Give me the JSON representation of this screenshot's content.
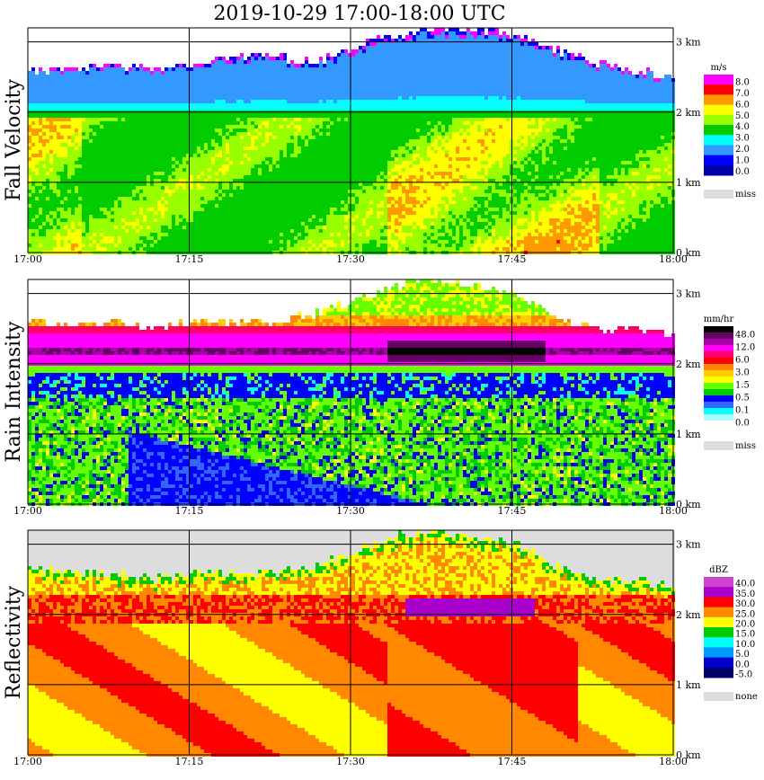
{
  "title": "2019-10-29   17:00-18:00 UTC",
  "chart_data": [
    {
      "type": "heatmap",
      "ylabel": "Fall Velocity",
      "x_ticks": [
        "17:00",
        "17:15",
        "17:30",
        "17:45",
        "18:00"
      ],
      "y_ticks": [
        "0 km",
        "1 km",
        "2 km",
        "3 km"
      ],
      "xlim": [
        "17:00",
        "18:00"
      ],
      "ylim": [
        0,
        3.2
      ],
      "grid": true,
      "legend_unit": "m/s",
      "legend_labels": [
        "8.0",
        "7.0",
        "6.0",
        "5.0",
        "4.0",
        "3.0",
        "2.0",
        "1.0",
        "0.0"
      ],
      "legend_colors": [
        "#ff00ff",
        "#ff0000",
        "#ff9900",
        "#ffff00",
        "#99ff00",
        "#00cc00",
        "#00ffff",
        "#3399ff",
        "#0000ff",
        "#0000aa"
      ],
      "missing_label": "miss",
      "missing_color": "#dddddd",
      "echo_top_km": [
        2.6,
        2.6,
        2.7,
        2.6,
        2.7,
        2.8,
        2.8,
        2.7,
        2.9,
        3.1,
        3.2,
        3.2,
        3.1,
        2.9,
        2.7,
        2.6,
        2.5
      ],
      "melting_layer_km": 2.0,
      "notes": [
        "melting layer near 2 km",
        "orange/red band of higher fall velocity 17:35-17:52"
      ]
    },
    {
      "type": "heatmap",
      "ylabel": "Rain Intensity",
      "x_ticks": [
        "17:00",
        "17:15",
        "17:30",
        "17:45",
        "18:00"
      ],
      "y_ticks": [
        "0 km",
        "1 km",
        "2 km",
        "3 km"
      ],
      "xlim": [
        "17:00",
        "18:00"
      ],
      "ylim": [
        0,
        3.2
      ],
      "grid": true,
      "legend_unit": "mm/hr",
      "legend_labels": [
        "48.0",
        "12.0",
        "6.0",
        "3.0",
        "1.5",
        "0.5",
        "0.1",
        "0.0"
      ],
      "legend_colors": [
        "#000000",
        "#660066",
        "#aa00aa",
        "#ff00ff",
        "#ff0066",
        "#ff0000",
        "#ff8800",
        "#ffcc00",
        "#ffff00",
        "#66ff00",
        "#00cc00",
        "#0000ff",
        "#3366ff",
        "#00ffff",
        "#aaffff",
        "#ffffff"
      ],
      "missing_label": "miss",
      "missing_color": "#dddddd",
      "echo_top_km": [
        2.6,
        2.6,
        2.6,
        2.5,
        2.6,
        2.6,
        2.6,
        2.7,
        2.9,
        3.1,
        3.2,
        3.1,
        3.0,
        2.7,
        2.5,
        2.5,
        2.4
      ],
      "bright_band_km": 2.2
    },
    {
      "type": "heatmap",
      "ylabel": "Reflectivity",
      "x_ticks": [
        "17:00",
        "17:15",
        "17:30",
        "17:45",
        "18:00"
      ],
      "y_ticks": [
        "0 km",
        "1 km",
        "2 km",
        "3 km"
      ],
      "xlim": [
        "17:00",
        "18:00"
      ],
      "ylim": [
        0,
        3.2
      ],
      "grid": true,
      "legend_unit": "dBZ",
      "legend_labels": [
        "40.0",
        "35.0",
        "30.0",
        "25.0",
        "20.0",
        "15.0",
        "10.0",
        "5.0",
        "0.0",
        "-5.0"
      ],
      "legend_colors": [
        "#cc44cc",
        "#aa00cc",
        "#ff0000",
        "#ff8800",
        "#ffff00",
        "#00cc00",
        "#00ffff",
        "#0099ff",
        "#0000cc",
        "#000066"
      ],
      "missing_label": "none",
      "missing_color": "#dddddd",
      "echo_top_km": [
        2.7,
        2.6,
        2.6,
        2.5,
        2.6,
        2.6,
        2.6,
        2.7,
        2.9,
        3.1,
        3.2,
        3.1,
        3.0,
        2.7,
        2.5,
        2.5,
        2.4
      ],
      "bright_band_km": 2.1
    }
  ]
}
